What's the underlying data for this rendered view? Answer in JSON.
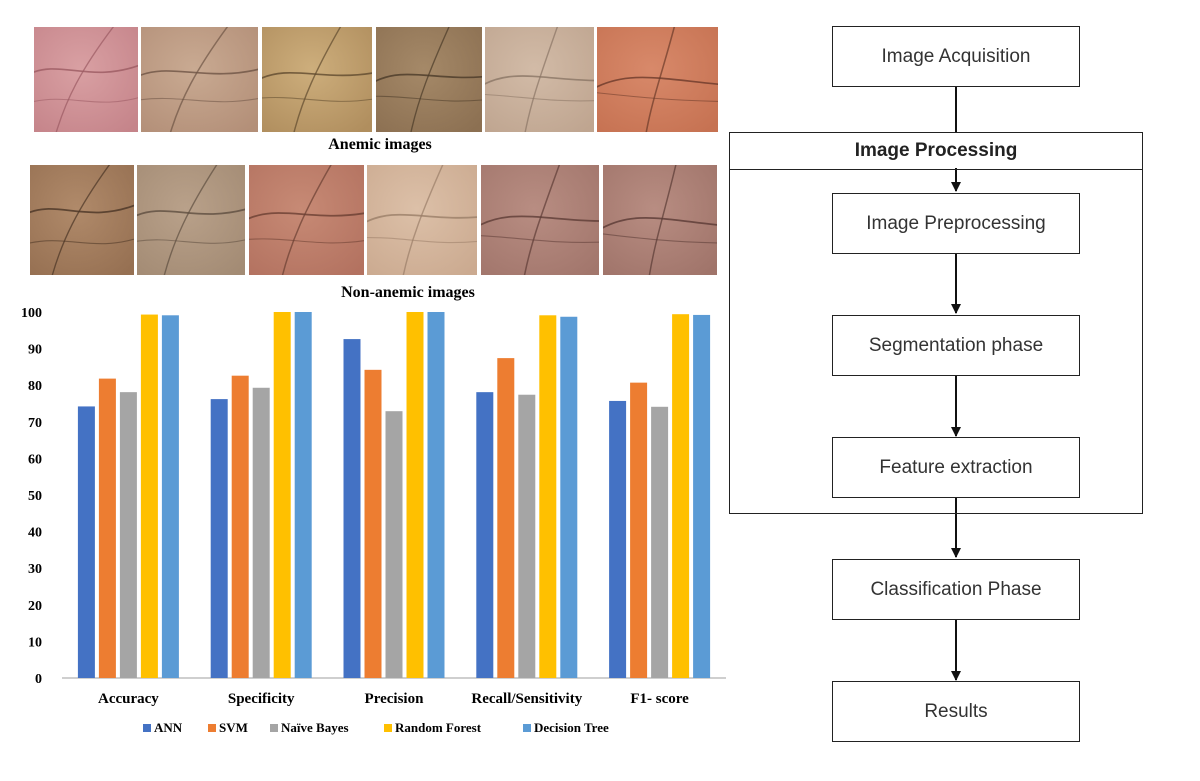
{
  "captions": {
    "anemic": "Anemic images",
    "non_anemic": "Non-anemic images"
  },
  "palm_images": {
    "anemic": [
      {
        "name": "palm-anemic-1",
        "base": "#d9a0a3",
        "shade": "#c5848a",
        "line": "#9b5a62"
      },
      {
        "name": "palm-anemic-2",
        "base": "#c9aa92",
        "shade": "#b38f78",
        "line": "#6e5445"
      },
      {
        "name": "palm-anemic-3",
        "base": "#cdae7c",
        "shade": "#b08e5e",
        "line": "#5f4a2e"
      },
      {
        "name": "palm-anemic-4",
        "base": "#a58968",
        "shade": "#8c7052",
        "line": "#4a3a28"
      },
      {
        "name": "palm-anemic-5",
        "base": "#d2bba7",
        "shade": "#bfa590",
        "line": "#8a7565"
      },
      {
        "name": "palm-anemic-6",
        "base": "#d8896a",
        "shade": "#c67252",
        "line": "#6b3a2a"
      }
    ],
    "non_anemic": [
      {
        "name": "palm-non-anemic-1",
        "base": "#b08a6a",
        "shade": "#967052",
        "line": "#4a3525"
      },
      {
        "name": "palm-non-anemic-2",
        "base": "#b9a18a",
        "shade": "#a38b74",
        "line": "#5e4e40"
      },
      {
        "name": "palm-non-anemic-3",
        "base": "#c78a75",
        "shade": "#b37260",
        "line": "#6a3e32"
      },
      {
        "name": "palm-non-anemic-4",
        "base": "#dcc0a8",
        "shade": "#cbaa90",
        "line": "#9a7e68"
      },
      {
        "name": "palm-non-anemic-5",
        "base": "#b88d82",
        "shade": "#a2766c",
        "line": "#5e3c36"
      },
      {
        "name": "palm-non-anemic-6",
        "base": "#b88d82",
        "shade": "#a0746a",
        "line": "#5a3a34"
      }
    ]
  },
  "chart_data": {
    "type": "bar",
    "title": "",
    "xlabel": "",
    "ylabel": "",
    "ylim": [
      0,
      100
    ],
    "yticks": [
      0,
      10,
      20,
      30,
      40,
      50,
      60,
      70,
      80,
      90,
      100
    ],
    "grid": false,
    "legend_position": "bottom",
    "categories": [
      "Accuracy",
      "Specificity",
      "Precision",
      "Recall/Sensitivity",
      "F1- score"
    ],
    "series": [
      {
        "name": "ANN",
        "color": "#4472c4",
        "values": [
          74.2,
          76.2,
          92.6,
          78.1,
          75.7
        ]
      },
      {
        "name": "SVM",
        "color": "#ed7d31",
        "values": [
          81.8,
          82.6,
          84.2,
          87.4,
          80.7
        ]
      },
      {
        "name": "Naïve Bayes",
        "color": "#a5a5a5",
        "values": [
          78.1,
          79.3,
          72.9,
          77.4,
          74.1
        ]
      },
      {
        "name": "Random Forest",
        "color": "#ffc000",
        "values": [
          99.3,
          100,
          100,
          99.1,
          99.4
        ]
      },
      {
        "name": "Decision Tree",
        "color": "#5b9bd5",
        "values": [
          99.1,
          100,
          100,
          98.7,
          99.2
        ]
      }
    ]
  },
  "flowchart": {
    "image_acquisition": "Image Acquisition",
    "image_processing": "Image Processing",
    "image_preprocessing": "Image Preprocessing",
    "segmentation": "Segmentation phase",
    "feature_extraction": "Feature extraction",
    "classification": "Classification Phase",
    "results": "Results"
  }
}
